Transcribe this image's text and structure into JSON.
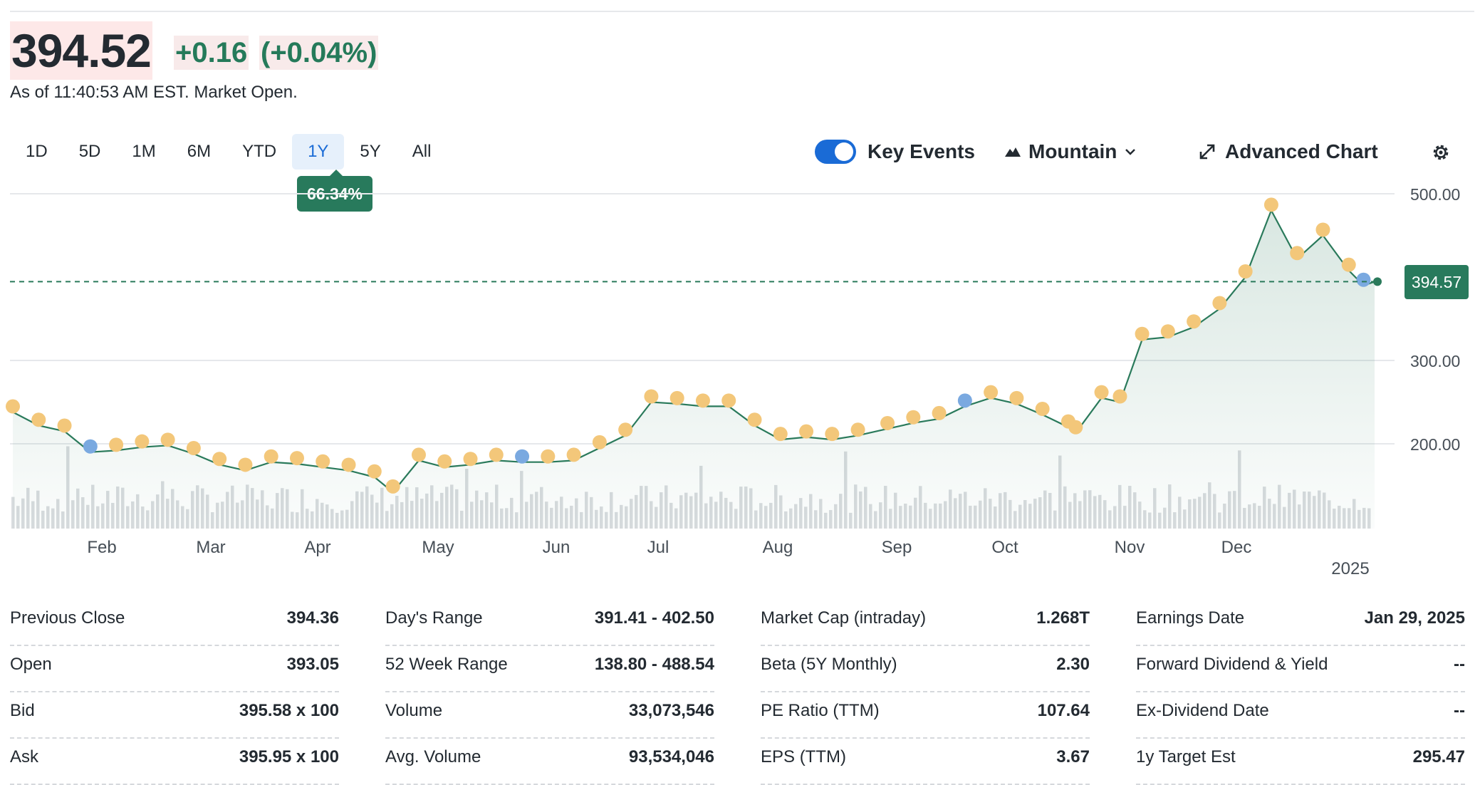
{
  "quote": {
    "price": "394.52",
    "change": "+0.16",
    "change_pct": "(+0.04%)",
    "as_of": "As of 11:40:53 AM EST. Market Open."
  },
  "range_tabs": [
    "1D",
    "5D",
    "1M",
    "6M",
    "YTD",
    "1Y",
    "5Y",
    "All"
  ],
  "active_range": "1Y",
  "range_return": "66.34%",
  "controls": {
    "key_events_label": "Key Events",
    "key_events_on": true,
    "chart_type_label": "Mountain",
    "advanced_label": "Advanced Chart"
  },
  "colors": {
    "up": "#257a5a",
    "line": "#2a7a5b",
    "accent": "#1a6bd6",
    "event_dot": "#f3c77a",
    "event_dot_alt": "#7aa9e0"
  },
  "chart_data": {
    "type": "area",
    "y_ticks": [
      "500.00",
      "300.00",
      "200.00"
    ],
    "y_tick_values": [
      500,
      300,
      200
    ],
    "ylim": [
      130,
      520
    ],
    "x_labels": [
      "Feb",
      "Mar",
      "Apr",
      "May",
      "Jun",
      "Jul",
      "Aug",
      "Sep",
      "Oct",
      "Nov",
      "Dec"
    ],
    "year_label": "2025",
    "current_price_label": "394.57",
    "current_price": 394.57,
    "series": [
      {
        "dates": [
          "2024-01-10",
          "2024-01-17",
          "2024-01-24",
          "2024-01-31",
          "2024-02-07",
          "2024-02-14",
          "2024-02-21",
          "2024-02-28",
          "2024-03-06",
          "2024-03-13",
          "2024-03-20",
          "2024-03-27",
          "2024-04-03",
          "2024-04-10",
          "2024-04-17",
          "2024-04-22",
          "2024-04-29",
          "2024-05-06",
          "2024-05-13",
          "2024-05-20",
          "2024-05-27",
          "2024-06-03",
          "2024-06-10",
          "2024-06-17",
          "2024-06-24",
          "2024-07-01",
          "2024-07-08",
          "2024-07-15",
          "2024-07-22",
          "2024-07-29",
          "2024-08-05",
          "2024-08-12",
          "2024-08-19",
          "2024-08-26",
          "2024-09-03",
          "2024-09-10",
          "2024-09-17",
          "2024-09-24",
          "2024-10-01",
          "2024-10-08",
          "2024-10-15",
          "2024-10-22",
          "2024-10-24",
          "2024-10-31",
          "2024-11-05",
          "2024-11-11",
          "2024-11-18",
          "2024-11-25",
          "2024-12-02",
          "2024-12-09",
          "2024-12-16",
          "2024-12-23",
          "2024-12-30",
          "2025-01-06",
          "2025-01-10",
          "2025-01-13"
        ],
        "close": [
          238,
          222,
          215,
          190,
          192,
          196,
          198,
          188,
          175,
          168,
          178,
          176,
          172,
          168,
          160,
          142,
          180,
          172,
          175,
          180,
          178,
          178,
          180,
          195,
          210,
          250,
          248,
          245,
          245,
          222,
          205,
          208,
          205,
          210,
          218,
          225,
          230,
          245,
          255,
          248,
          235,
          220,
          213,
          255,
          250,
          325,
          328,
          340,
          362,
          400,
          480,
          422,
          450,
          408,
          390,
          394.57
        ]
      }
    ],
    "volume_note": "volume bars shown beneath price"
  },
  "stats": [
    [
      {
        "label": "Previous Close",
        "value": "394.36"
      },
      {
        "label": "Open",
        "value": "393.05"
      },
      {
        "label": "Bid",
        "value": "395.58 x 100"
      },
      {
        "label": "Ask",
        "value": "395.95 x 100"
      }
    ],
    [
      {
        "label": "Day's Range",
        "value": "391.41 - 402.50"
      },
      {
        "label": "52 Week Range",
        "value": "138.80 - 488.54"
      },
      {
        "label": "Volume",
        "value": "33,073,546"
      },
      {
        "label": "Avg. Volume",
        "value": "93,534,046"
      }
    ],
    [
      {
        "label": "Market Cap (intraday)",
        "value": "1.268T"
      },
      {
        "label": "Beta (5Y Monthly)",
        "value": "2.30"
      },
      {
        "label": "PE Ratio (TTM)",
        "value": "107.64"
      },
      {
        "label": "EPS (TTM)",
        "value": "3.67"
      }
    ],
    [
      {
        "label": "Earnings Date",
        "value": "Jan 29, 2025"
      },
      {
        "label": "Forward Dividend & Yield",
        "value": "--"
      },
      {
        "label": "Ex-Dividend Date",
        "value": "--"
      },
      {
        "label": "1y Target Est",
        "value": "295.47"
      }
    ]
  ]
}
